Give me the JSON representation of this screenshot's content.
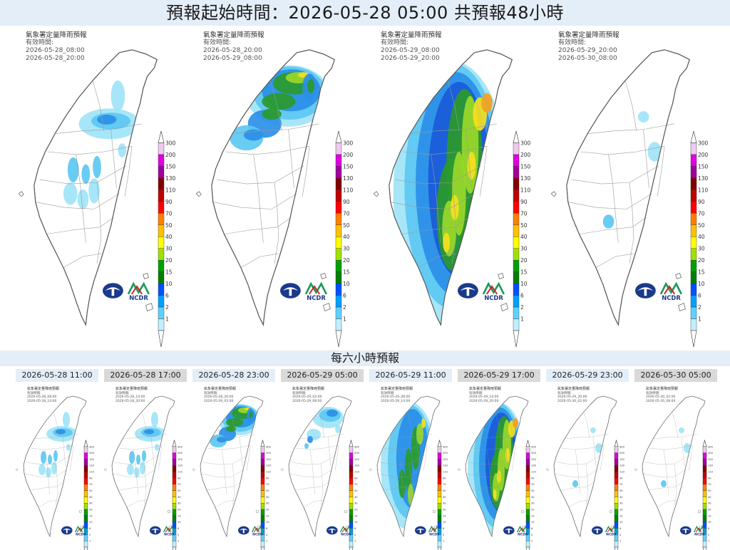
{
  "header": {
    "title": "預報起始時間：2026-05-28 05:00  共預報48小時"
  },
  "six_hour_header": "每六小時預報",
  "legend_values": [
    "300",
    "200",
    "150",
    "130",
    "110",
    "90",
    "70",
    "50",
    "40",
    "30",
    "20",
    "15",
    "10",
    "6",
    "2",
    "1"
  ],
  "legend_colors": [
    "#f0c8f0",
    "#e000e0",
    "#a000a0",
    "#800000",
    "#c00000",
    "#ff0000",
    "#ff8000",
    "#ffc000",
    "#ffff00",
    "#a0e000",
    "#00a000",
    "#008000",
    "#0050ff",
    "#00a0ff",
    "#60d0ff",
    "#c0f0ff"
  ],
  "rain_colors": {
    "light": "#9fe4f7",
    "lightblue": "#5cc8f2",
    "blue": "#2a8fe8",
    "deepblue": "#1a5ad8",
    "green": "#2a9a2a",
    "lime": "#9ad82a",
    "yellow": "#f5e020",
    "orange": "#f5a020"
  },
  "big_panels": [
    {
      "title": "氣象署定量降雨預報",
      "sub": "有效時間:",
      "t1": "2026-05-28_08:00",
      "t2": "2026-05-28_20:00",
      "intensity": "low"
    },
    {
      "title": "氣象署定量降雨預報",
      "sub": "有效時間:",
      "t1": "2026-05-28_20:00",
      "t2": "2026-05-29_08:00",
      "intensity": "north"
    },
    {
      "title": "氣象署定量降雨預報",
      "sub": "有效時間:",
      "t1": "2026-05-29_08:00",
      "t2": "2026-05-29_20:00",
      "intensity": "heavy"
    },
    {
      "title": "氣象署定量降雨預報",
      "sub": "有效時間:",
      "t1": "2026-05-29_20:00",
      "t2": "2026-05-30_08:00",
      "intensity": "minimal"
    }
  ],
  "small_panels": [
    {
      "label": "2026-05-28 11:00",
      "title": "氣象署定量降雨預報",
      "sub": "有效時間:",
      "t1": "2026-05-28_08:00",
      "t2": "2026-05-28_14:00",
      "intensity": "low"
    },
    {
      "label": "2026-05-28 17:00",
      "title": "氣象署定量降雨預報",
      "sub": "有效時間:",
      "t1": "2026-05-28_14:00",
      "t2": "2026-05-28_20:00",
      "intensity": "low"
    },
    {
      "label": "2026-05-28 23:00",
      "title": "氣象署定量降雨預報",
      "sub": "有效時間:",
      "t1": "2026-05-28_20:00",
      "t2": "2026-05-29_02:00",
      "intensity": "north"
    },
    {
      "label": "2026-05-29 05:00",
      "title": "氣象署定量降雨預報",
      "sub": "有效時間:",
      "t1": "2026-05-29_02:00",
      "t2": "2026-05-29_08:00",
      "intensity": "northlight"
    },
    {
      "label": "2026-05-29 11:00",
      "title": "氣象署定量降雨預報",
      "sub": "有效時間:",
      "t1": "2026-05-29_08:00",
      "t2": "2026-05-29_14:00",
      "intensity": "medium"
    },
    {
      "label": "2026-05-29 17:00",
      "title": "氣象署定量降雨預報",
      "sub": "有效時間:",
      "t1": "2026-05-29_14:00",
      "t2": "2026-05-29_20:00",
      "intensity": "heavy"
    },
    {
      "label": "2026-05-29 23:00",
      "title": "氣象署定量降雨預報",
      "sub": "有效時間:",
      "t1": "2026-05-29_20:00",
      "t2": "2026-05-30_02:00",
      "intensity": "minimal"
    },
    {
      "label": "2026-05-30 05:00",
      "title": "氣象署定量降雨預報",
      "sub": "有效時間:",
      "t1": "2026-05-30_02:00",
      "t2": "2026-05-30_08:00",
      "intensity": "minimal"
    }
  ],
  "logos": {
    "left": "cwa-logo",
    "right_text": "NCDR"
  }
}
